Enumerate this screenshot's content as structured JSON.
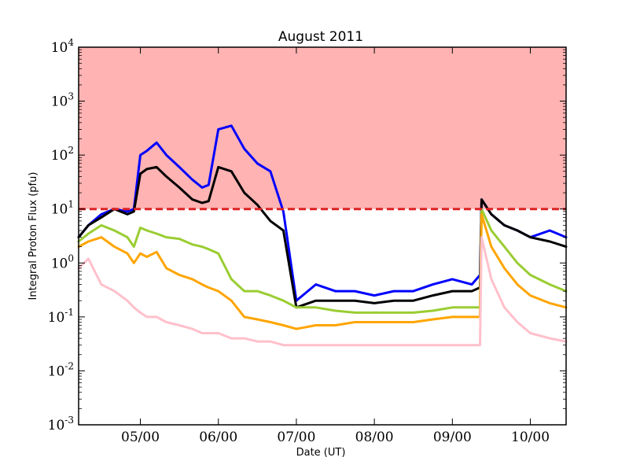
{
  "chart_data": {
    "type": "line",
    "title": "August 2011",
    "xlabel": "Date (UT)",
    "ylabel": "Integral Proton Flux (pfu)",
    "yscale": "log",
    "ylim": [
      0.001,
      10000
    ],
    "xlim": [
      "2011-08-04 05:00",
      "2011-08-10 11:00"
    ],
    "x_ticks": [
      {
        "label": "05/00",
        "value": "2011-08-05 00:00"
      },
      {
        "label": "06/00",
        "value": "2011-08-06 00:00"
      },
      {
        "label": "07/00",
        "value": "2011-08-07 00:00"
      },
      {
        "label": "08/00",
        "value": "2011-08-08 00:00"
      },
      {
        "label": "09/00",
        "value": "2011-08-09 00:00"
      },
      {
        "label": "10/00",
        "value": "2011-08-10 00:00"
      }
    ],
    "y_ticks": [
      {
        "base": "10",
        "exp": "-3",
        "value": 0.001
      },
      {
        "base": "10",
        "exp": "-2",
        "value": 0.01
      },
      {
        "base": "10",
        "exp": "-1",
        "value": 0.1
      },
      {
        "base": "10",
        "exp": "0",
        "value": 1
      },
      {
        "base": "10",
        "exp": "1",
        "value": 10
      },
      {
        "base": "10",
        "exp": "2",
        "value": 100
      },
      {
        "base": "10",
        "exp": "3",
        "value": 1000
      },
      {
        "base": "10",
        "exp": "4",
        "value": 10000
      }
    ],
    "threshold": {
      "value": 10,
      "color": "#dd2222"
    },
    "shaded_region": {
      "from": 10,
      "to": 10000,
      "color": "#ffb3b3"
    },
    "grid": false,
    "legend": "none",
    "x": [
      "2011-08-04 05:00",
      "2011-08-04 08:00",
      "2011-08-04 12:00",
      "2011-08-04 16:00",
      "2011-08-04 20:00",
      "2011-08-04 22:00",
      "2011-08-05 00:00",
      "2011-08-05 02:00",
      "2011-08-05 05:00",
      "2011-08-05 08:00",
      "2011-08-05 12:00",
      "2011-08-05 16:00",
      "2011-08-05 19:00",
      "2011-08-05 21:00",
      "2011-08-06 00:00",
      "2011-08-06 04:00",
      "2011-08-06 08:00",
      "2011-08-06 12:00",
      "2011-08-06 16:00",
      "2011-08-06 20:00",
      "2011-08-07 00:00",
      "2011-08-07 06:00",
      "2011-08-07 12:00",
      "2011-08-07 18:00",
      "2011-08-08 00:00",
      "2011-08-08 06:00",
      "2011-08-08 12:00",
      "2011-08-08 18:00",
      "2011-08-09 00:00",
      "2011-08-09 06:00",
      "2011-08-09 08:30",
      "2011-08-09 09:00",
      "2011-08-09 12:00",
      "2011-08-09 16:00",
      "2011-08-09 20:00",
      "2011-08-10 00:00",
      "2011-08-10 06:00",
      "2011-08-10 11:00"
    ],
    "series": [
      {
        "color": "#0000ff",
        "values": [
          3.0,
          5.0,
          8.0,
          10.0,
          9.0,
          10.0,
          100.0,
          120.0,
          170.0,
          100.0,
          60.0,
          35.0,
          25.0,
          28.0,
          300.0,
          350.0,
          130.0,
          70.0,
          50.0,
          9.0,
          0.2,
          0.4,
          0.3,
          0.3,
          0.25,
          0.3,
          0.3,
          0.4,
          0.5,
          0.4,
          0.6,
          15.0,
          8.0,
          5.0,
          4.0,
          3.0,
          4.0,
          3.0
        ]
      },
      {
        "color": "#000000",
        "values": [
          3.0,
          5.0,
          7.0,
          10.0,
          8.0,
          9.0,
          45.0,
          55.0,
          60.0,
          40.0,
          25.0,
          15.0,
          13.0,
          14.0,
          60.0,
          50.0,
          20.0,
          12.0,
          6.0,
          4.0,
          0.15,
          0.2,
          0.2,
          0.2,
          0.18,
          0.2,
          0.2,
          0.25,
          0.3,
          0.3,
          0.35,
          15.0,
          8.0,
          5.0,
          4.0,
          3.0,
          2.5,
          2.0
        ]
      },
      {
        "color": "#9acd32",
        "values": [
          2.5,
          3.5,
          5.0,
          4.0,
          3.0,
          2.0,
          4.5,
          4.0,
          3.5,
          3.0,
          2.8,
          2.2,
          2.0,
          1.8,
          1.5,
          0.5,
          0.3,
          0.3,
          0.25,
          0.2,
          0.15,
          0.15,
          0.13,
          0.12,
          0.12,
          0.12,
          0.12,
          0.13,
          0.15,
          0.15,
          0.15,
          10.0,
          4.0,
          2.0,
          1.0,
          0.6,
          0.4,
          0.3
        ]
      },
      {
        "color": "#ffa500",
        "values": [
          2.0,
          2.5,
          3.0,
          2.0,
          1.5,
          1.0,
          1.5,
          1.3,
          1.6,
          0.8,
          0.6,
          0.5,
          0.4,
          0.35,
          0.3,
          0.2,
          0.1,
          0.09,
          0.08,
          0.07,
          0.06,
          0.07,
          0.07,
          0.08,
          0.08,
          0.08,
          0.08,
          0.09,
          0.1,
          0.1,
          0.1,
          8.0,
          2.0,
          0.8,
          0.4,
          0.25,
          0.18,
          0.15
        ]
      },
      {
        "color": "#ffc0cb",
        "values": [
          0.8,
          1.2,
          0.4,
          0.3,
          0.2,
          0.15,
          0.12,
          0.1,
          0.1,
          0.08,
          0.07,
          0.06,
          0.05,
          0.05,
          0.05,
          0.04,
          0.04,
          0.035,
          0.035,
          0.03,
          0.03,
          0.03,
          0.03,
          0.03,
          0.03,
          0.03,
          0.03,
          0.03,
          0.03,
          0.03,
          0.03,
          3.0,
          0.5,
          0.15,
          0.08,
          0.05,
          0.04,
          0.035
        ]
      }
    ]
  }
}
